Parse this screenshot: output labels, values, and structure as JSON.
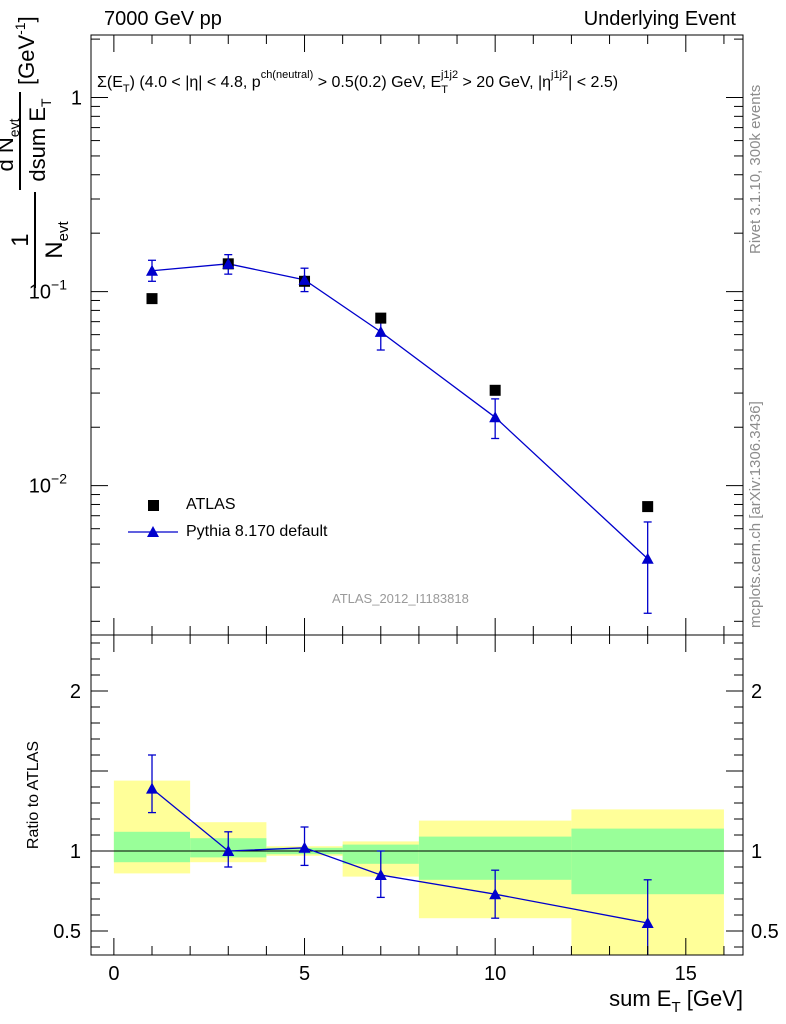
{
  "header": {
    "left": "7000 GeV pp",
    "right": "Underlying Event"
  },
  "side_text": {
    "rivet": "Rivet 3.1.10,  300k events",
    "mcplots": "mcplots.cern.ch [arXiv:1306.3436]"
  },
  "analysis_id": "ATLAS_2012_I1183818",
  "colors": {
    "data": "#000000",
    "mc": "#0000cc",
    "band_inner": "#99ff99",
    "band_outer": "#ffff99"
  },
  "chart_data": [
    {
      "type": "scatter",
      "title": "Σ(E_T) (4.0 < |η| < 4.8, p^ch(neutral) > 0.5(0.2) GeV, E_T^j1j2 > 20 GeV, |η^j1j2| < 2.5)",
      "ylabel": "1/N_evt dN_evt/dsum E_T [GeV^-1]",
      "yscale": "log",
      "ylim": [
        0.0017,
        2.1
      ],
      "xlim": [
        -0.6,
        16.5
      ],
      "y_tick_labels": [
        "1",
        "10^-1",
        "10^-2"
      ],
      "grid": false,
      "legend_position": "bottom-left",
      "series": [
        {
          "name": "ATLAS",
          "marker": "square",
          "x": [
            1,
            3,
            5,
            7,
            10,
            14
          ],
          "y": [
            0.092,
            0.139,
            0.113,
            0.073,
            0.031,
            0.0078
          ]
        },
        {
          "name": "Pythia 8.170 default",
          "marker": "triangle",
          "line": true,
          "x": [
            1,
            3,
            5,
            7,
            10,
            14
          ],
          "y": [
            0.128,
            0.139,
            0.115,
            0.062,
            0.0225,
            0.0042
          ],
          "y_low": [
            0.113,
            0.123,
            0.1,
            0.05,
            0.0175,
            0.0022
          ],
          "y_high": [
            0.145,
            0.155,
            0.132,
            0.072,
            0.028,
            0.0065
          ]
        }
      ]
    },
    {
      "type": "scatter",
      "xlabel": "sum E_T [GeV]",
      "ylabel": "Ratio to ATLAS",
      "ylim": [
        0.35,
        2.35
      ],
      "xlim": [
        -0.6,
        16.5
      ],
      "x_ticks": [
        0,
        5,
        10,
        15
      ],
      "y_ticks": [
        0.5,
        1,
        2
      ],
      "reference_line": 1,
      "bins": [
        {
          "x_low": 0,
          "x_high": 2,
          "inner": [
            0.93,
            1.12
          ],
          "outer": [
            0.86,
            1.44
          ]
        },
        {
          "x_low": 2,
          "x_high": 4,
          "inner": [
            0.96,
            1.08
          ],
          "outer": [
            0.93,
            1.18
          ]
        },
        {
          "x_low": 4,
          "x_high": 6,
          "inner": [
            0.98,
            1.02
          ],
          "outer": [
            0.97,
            1.03
          ]
        },
        {
          "x_low": 6,
          "x_high": 8,
          "inner": [
            0.92,
            1.04
          ],
          "outer": [
            0.84,
            1.06
          ]
        },
        {
          "x_low": 8,
          "x_high": 12,
          "inner": [
            0.82,
            1.09
          ],
          "outer": [
            0.58,
            1.19
          ]
        },
        {
          "x_low": 12,
          "x_high": 16,
          "inner": [
            0.73,
            1.14
          ],
          "outer": [
            0.35,
            1.26
          ]
        }
      ],
      "series": [
        {
          "name": "Pythia 8.170 default",
          "x": [
            1,
            3,
            5,
            7,
            10,
            14
          ],
          "y": [
            1.39,
            1.0,
            1.02,
            0.85,
            0.73,
            0.55
          ],
          "y_low": [
            1.24,
            0.9,
            0.91,
            0.71,
            0.58,
            0.34
          ],
          "y_high": [
            1.6,
            1.12,
            1.15,
            1.0,
            0.88,
            0.82
          ]
        }
      ]
    }
  ]
}
